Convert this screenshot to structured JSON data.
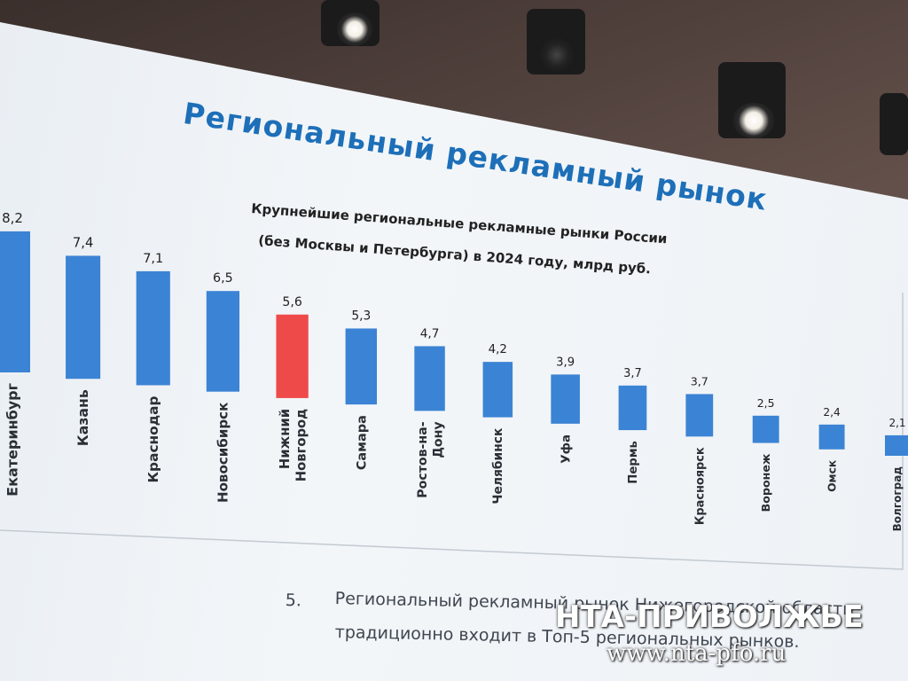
{
  "slide": {
    "title": "Региональный рекламный рынок",
    "bottom_number": "5.",
    "bottom_line1": "Региональный рекламный рынок Нижегородской области",
    "bottom_line2": "традиционно входит в Топ-5 региональных рынков."
  },
  "watermark": {
    "brand": "НТА-ПРИВОЛЖЬЕ",
    "url": "www.nta-pfo.ru"
  },
  "colors": {
    "bar": "#3b83d4",
    "highlight": "#ef4a4a",
    "title": "#1d6fb8"
  },
  "chart_data": {
    "type": "bar",
    "title": "Крупнейшие региональные рекламные рынки России",
    "subtitle": "(без Москвы и Петербурга) в 2024 году, млрд руб.",
    "categories": [
      "Екатеринбург",
      "Казань",
      "Краснодар",
      "Новосибирск",
      "Нижний Новгород",
      "Самара",
      "Ростов-на-Дону",
      "Челябинск",
      "Уфа",
      "Пермь",
      "Красноярск",
      "Воронеж",
      "Омск",
      "Волгоград"
    ],
    "category_lines": [
      [
        "Екатеринбург"
      ],
      [
        "Казань"
      ],
      [
        "Краснодар"
      ],
      [
        "Новосибирск"
      ],
      [
        "Нижний",
        "Новгород"
      ],
      [
        "Самара"
      ],
      [
        "Ростов-на-",
        "Дону"
      ],
      [
        "Челябинск"
      ],
      [
        "Уфа"
      ],
      [
        "Пермь"
      ],
      [
        "Красноярск"
      ],
      [
        "Воронеж"
      ],
      [
        "Омск"
      ],
      [
        "Волгоград"
      ]
    ],
    "values": [
      8.2,
      7.4,
      7.1,
      6.5,
      5.6,
      5.3,
      4.7,
      4.2,
      3.9,
      3.7,
      3.7,
      2.5,
      2.4,
      2.1
    ],
    "value_labels": [
      "8,2",
      "7,4",
      "7,1",
      "6,5",
      "5,6",
      "5,3",
      "4,7",
      "4,2",
      "3,9",
      "3,7",
      "3,7",
      "2,5",
      "2,4",
      "2,1"
    ],
    "highlight": "Нижний Новгород",
    "grid": false,
    "legend": "none"
  }
}
